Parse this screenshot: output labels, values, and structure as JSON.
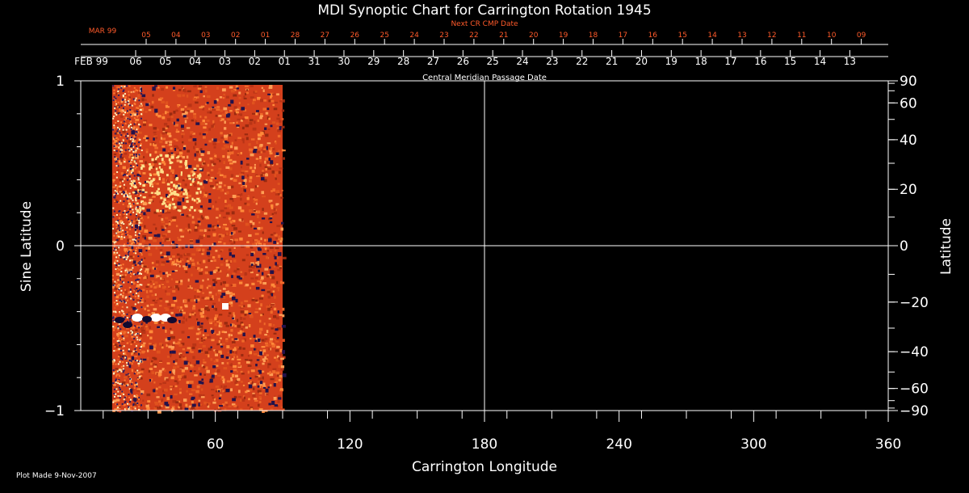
{
  "chart_data": {
    "type": "heatmap",
    "title": "MDI Synoptic Chart for Carrington Rotation 1945",
    "xlabel": "Carrington Longitude",
    "ylabel": "Sine Latitude",
    "ylabel_right": "Latitude",
    "xlim": [
      0,
      360
    ],
    "ylim": [
      -1,
      1
    ],
    "x_ticks": [
      60,
      120,
      180,
      240,
      300,
      360
    ],
    "y_ticks_left": [
      -1,
      0,
      1
    ],
    "y_tick_labels_left": [
      "−1",
      "0",
      "1"
    ],
    "y_ticks_right": [
      90,
      60,
      40,
      20,
      0,
      -20,
      -40,
      -60,
      -90
    ],
    "y_tick_labels_right": [
      "90",
      "60",
      "40",
      "20",
      "0",
      "−20",
      "−40",
      "−60",
      "−90"
    ],
    "data_extent_longitude": [
      14,
      90
    ],
    "top_axis": {
      "label": "Central Meridian Passage Date",
      "month_label": "FEB 99",
      "dates": [
        "06",
        "05",
        "04",
        "03",
        "02",
        "01",
        "31",
        "30",
        "29",
        "28",
        "27",
        "26",
        "25",
        "24",
        "23",
        "22",
        "21",
        "20",
        "19",
        "18",
        "17",
        "16",
        "15",
        "14",
        "13"
      ]
    },
    "next_cr_axis": {
      "label": "Next CR CMP Date",
      "month_label": "MAR 99",
      "dates": [
        "05",
        "04",
        "03",
        "02",
        "01",
        "28",
        "27",
        "26",
        "25",
        "24",
        "23",
        "22",
        "21",
        "20",
        "19",
        "18",
        "17",
        "16",
        "15",
        "14",
        "13",
        "12",
        "11",
        "10",
        "09"
      ]
    }
  },
  "footer": {
    "plot_made": "Plot Made  9-Nov-2007"
  },
  "colors": {
    "background": "#000000",
    "axis": "#ffffff",
    "next_cr": "#ff5a2a",
    "map_base": "#d4401c"
  }
}
